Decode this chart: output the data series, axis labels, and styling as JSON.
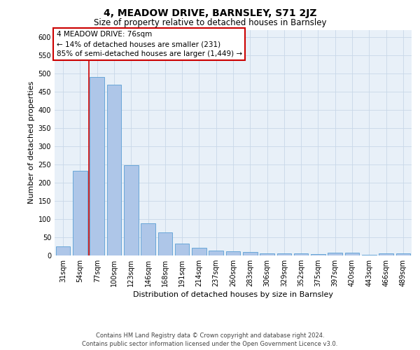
{
  "title": "4, MEADOW DRIVE, BARNSLEY, S71 2JZ",
  "subtitle": "Size of property relative to detached houses in Barnsley",
  "xlabel": "Distribution of detached houses by size in Barnsley",
  "ylabel": "Number of detached properties",
  "footer_line1": "Contains HM Land Registry data © Crown copyright and database right 2024.",
  "footer_line2": "Contains public sector information licensed under the Open Government Licence v3.0.",
  "categories": [
    "31sqm",
    "54sqm",
    "77sqm",
    "100sqm",
    "123sqm",
    "146sqm",
    "168sqm",
    "191sqm",
    "214sqm",
    "237sqm",
    "260sqm",
    "283sqm",
    "306sqm",
    "329sqm",
    "352sqm",
    "375sqm",
    "397sqm",
    "420sqm",
    "443sqm",
    "466sqm",
    "489sqm"
  ],
  "values": [
    25,
    233,
    490,
    470,
    248,
    88,
    63,
    33,
    22,
    13,
    12,
    9,
    6,
    5,
    5,
    3,
    7,
    7,
    1,
    5,
    5
  ],
  "bar_color": "#aec6e8",
  "bar_edgecolor": "#5a9fd4",
  "highlight_index": 2,
  "highlight_line_color": "#cc0000",
  "ylim": [
    0,
    620
  ],
  "yticks": [
    0,
    50,
    100,
    150,
    200,
    250,
    300,
    350,
    400,
    450,
    500,
    550,
    600
  ],
  "annotation_line1": "4 MEADOW DRIVE: 76sqm",
  "annotation_line2": "← 14% of detached houses are smaller (231)",
  "annotation_line3": "85% of semi-detached houses are larger (1,449) →",
  "annotation_box_color": "#ffffff",
  "annotation_box_edgecolor": "#cc0000",
  "background_color": "#ffffff",
  "plot_bg_color": "#e8f0f8",
  "grid_color": "#c8d8e8",
  "title_fontsize": 10,
  "subtitle_fontsize": 8.5,
  "axis_label_fontsize": 8,
  "tick_fontsize": 7,
  "annotation_fontsize": 7.5,
  "ylabel_fontsize": 8
}
